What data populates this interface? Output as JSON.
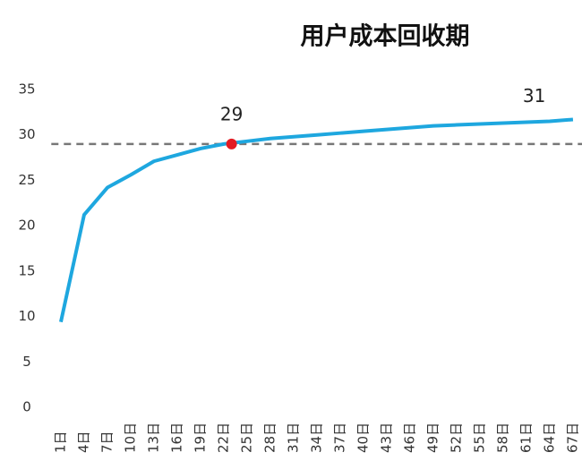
{
  "chart_data": {
    "type": "line",
    "title": "用户成本回收期",
    "x": [
      1,
      4,
      7,
      10,
      13,
      16,
      19,
      22,
      25,
      28,
      31,
      34,
      37,
      40,
      43,
      46,
      49,
      52,
      55,
      58,
      61,
      64,
      67
    ],
    "series": [
      {
        "color": "#1ea7df",
        "values": [
          9.4,
          21.2,
          24.2,
          25.6,
          27.1,
          27.8,
          28.5,
          29.0,
          29.3,
          29.6,
          29.8,
          30.0,
          30.2,
          30.4,
          30.6,
          30.8,
          31.0,
          31.1,
          31.2,
          31.3,
          31.4,
          31.5,
          31.7
        ]
      }
    ],
    "xlim": [
      0,
      68
    ],
    "xticks": [
      {
        "value": 1,
        "label": "1日"
      },
      {
        "value": 4,
        "label": "4日"
      },
      {
        "value": 7,
        "label": "7日"
      },
      {
        "value": 10,
        "label": "10日"
      },
      {
        "value": 13,
        "label": "13日"
      },
      {
        "value": 16,
        "label": "16日"
      },
      {
        "value": 19,
        "label": "19日"
      },
      {
        "value": 22,
        "label": "22日"
      },
      {
        "value": 25,
        "label": "25日"
      },
      {
        "value": 28,
        "label": "28日"
      },
      {
        "value": 31,
        "label": "31日"
      },
      {
        "value": 34,
        "label": "34日"
      },
      {
        "value": 37,
        "label": "37日"
      },
      {
        "value": 40,
        "label": "40日"
      },
      {
        "value": 43,
        "label": "43日"
      },
      {
        "value": 46,
        "label": "46日"
      },
      {
        "value": 49,
        "label": "49日"
      },
      {
        "value": 52,
        "label": "52日"
      },
      {
        "value": 55,
        "label": "55日"
      },
      {
        "value": 58,
        "label": "58日"
      },
      {
        "value": 61,
        "label": "61日"
      },
      {
        "value": 64,
        "label": "64日"
      },
      {
        "value": 67,
        "label": "67日"
      }
    ],
    "ylim": [
      0,
      35
    ],
    "yticks": [
      0,
      5,
      10,
      15,
      20,
      25,
      30,
      35
    ],
    "reference_line": {
      "value": 29,
      "color": "#777777"
    },
    "annotations": [
      {
        "x": 23,
        "value": 29,
        "marker_color": "#e31b23"
      },
      {
        "x": 62,
        "value": 31
      }
    ]
  }
}
